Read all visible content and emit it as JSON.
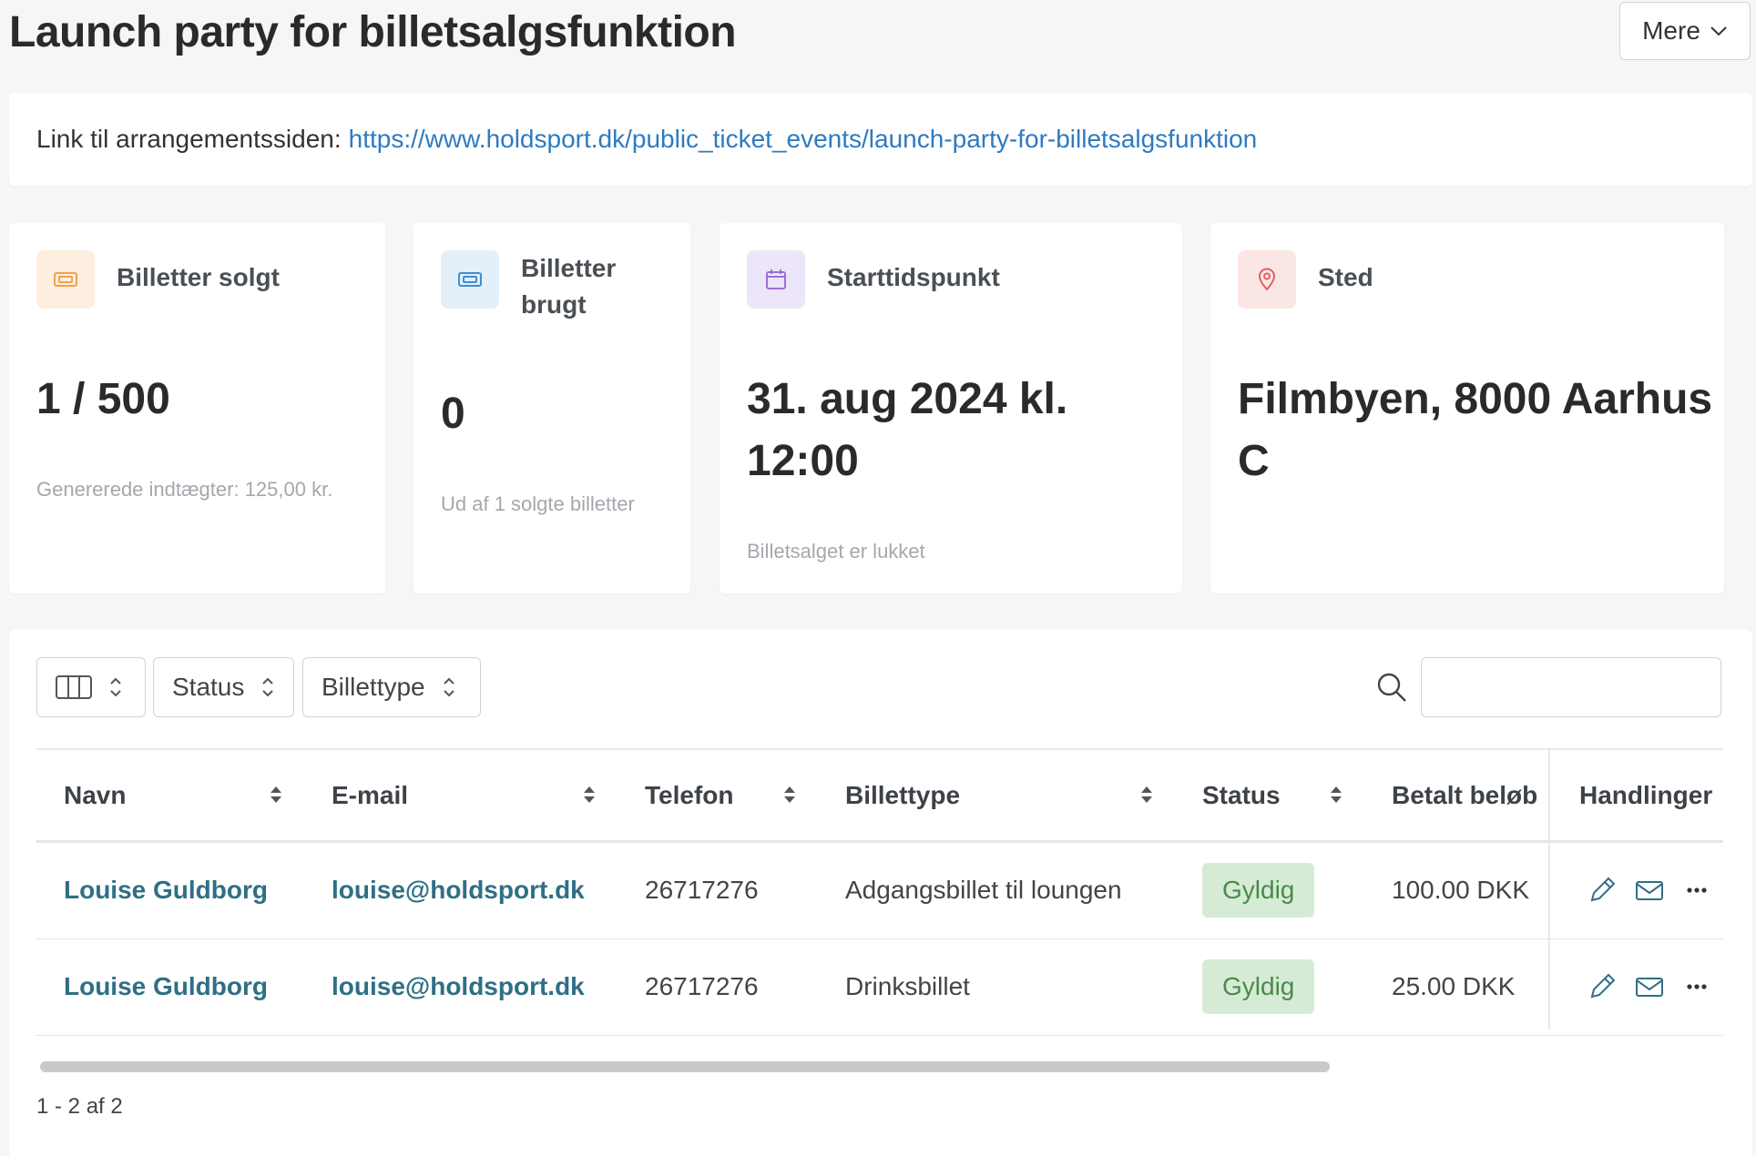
{
  "header": {
    "title": "Launch party for billetsalgsfunktion",
    "more_label": "Mere"
  },
  "link": {
    "label": "Link til arrangementssiden:",
    "url": "https://www.holdsport.dk/public_ticket_events/launch-party-for-billetsalgsfunktion"
  },
  "stats": [
    {
      "title": "Billetter solgt",
      "value": "1 / 500",
      "sub": "Genererede indtægter: 125,00 kr.",
      "icon": "ticket-icon",
      "color": "#f0a24b",
      "bg": "#fdeee0"
    },
    {
      "title_line1": "Billetter",
      "title_line2": "brugt",
      "value": "0",
      "sub": "Ud af 1 solgte billetter",
      "icon": "ticket-icon",
      "color": "#3d8fd1",
      "bg": "#e3f0fa"
    },
    {
      "title": "Starttidspunkt",
      "value_line1": "31. aug 2024 kl.",
      "value_line2": "12:00",
      "sub": "Billetsalget er lukket",
      "icon": "calendar-icon",
      "color": "#9a6fd6",
      "bg": "#ede6fa"
    },
    {
      "title": "Sted",
      "value_line1": "Filmbyen, 8000 Aarhus",
      "value_line2": "C",
      "icon": "map-pin-icon",
      "color": "#e0605f",
      "bg": "#fbe6e6"
    }
  ],
  "filters": {
    "status": "Status",
    "ticket_type": "Billettype",
    "search_value": ""
  },
  "table": {
    "columns": [
      "Navn",
      "E-mail",
      "Telefon",
      "Billettype",
      "Status",
      "Betalt beløb",
      "Handlinger"
    ],
    "rows": [
      {
        "name": "Louise Guldborg",
        "email": "louise@holdsport.dk",
        "phone": "26717276",
        "type": "Adgangsbillet til loungen",
        "status": "Gyldig",
        "amount": "100.00 DKK"
      },
      {
        "name": "Louise Guldborg",
        "email": "louise@holdsport.dk",
        "phone": "26717276",
        "type": "Drinksbillet",
        "status": "Gyldig",
        "amount": "25.00 DKK"
      }
    ]
  },
  "pagination": {
    "text": "1 - 2 af 2"
  },
  "colors": {
    "link": "#2e7ac2",
    "name_link": "#2f6f86",
    "badge_bg": "#d6ebd6",
    "badge_text": "#4b8a4b"
  }
}
